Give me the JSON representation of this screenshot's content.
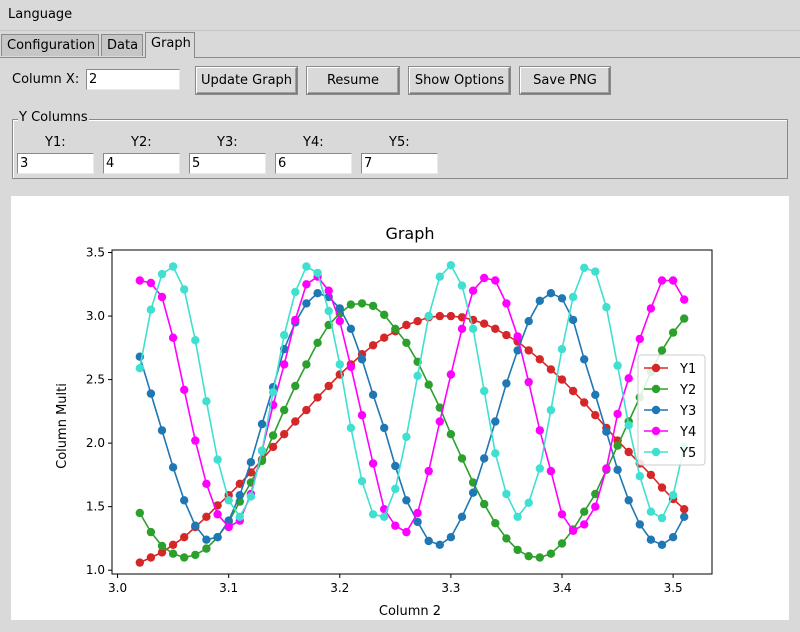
{
  "menu": {
    "language_label": "Language"
  },
  "tabs": [
    {
      "label": "Configuration",
      "active": false
    },
    {
      "label": "Data",
      "active": false
    },
    {
      "label": "Graph",
      "active": true
    }
  ],
  "controls": {
    "column_x_label": "Column X:",
    "column_x_value": "2",
    "update_graph_label": "Update Graph",
    "resume_label": "Resume",
    "show_options_label": "Show Options",
    "save_png_label": "Save PNG"
  },
  "y_columns": {
    "title": "Y Columns",
    "fields": [
      {
        "label": "Y1:",
        "value": "3"
      },
      {
        "label": "Y2:",
        "value": "4"
      },
      {
        "label": "Y3:",
        "value": "5"
      },
      {
        "label": "Y4:",
        "value": "6"
      },
      {
        "label": "Y5:",
        "value": "7"
      }
    ]
  },
  "chart_data": {
    "type": "line",
    "title": "Graph",
    "xlabel": "Column 2",
    "ylabel": "Column Multi",
    "xlim": [
      2.995,
      3.535
    ],
    "ylim": [
      0.97,
      3.52
    ],
    "xticks": [
      "3.0",
      "3.1",
      "3.2",
      "3.3",
      "3.4",
      "3.5"
    ],
    "yticks": [
      "1.0",
      "1.5",
      "2.0",
      "2.5",
      "3.0",
      "3.5"
    ],
    "grid": false,
    "legend_position": "center-right",
    "marker": "circle",
    "x": [
      3.02,
      3.03,
      3.04,
      3.05,
      3.06,
      3.07,
      3.08,
      3.09,
      3.1,
      3.11,
      3.12,
      3.13,
      3.14,
      3.15,
      3.16,
      3.17,
      3.18,
      3.19,
      3.2,
      3.21,
      3.22,
      3.23,
      3.24,
      3.25,
      3.26,
      3.27,
      3.28,
      3.29,
      3.3,
      3.31,
      3.32,
      3.33,
      3.34,
      3.35,
      3.36,
      3.37,
      3.38,
      3.39,
      3.4,
      3.41,
      3.42,
      3.43,
      3.44,
      3.45,
      3.46,
      3.47,
      3.48,
      3.49,
      3.5,
      3.51
    ],
    "series": [
      {
        "name": "Y1",
        "color": "#d62728",
        "values": [
          1.06,
          1.1,
          1.14,
          1.2,
          1.26,
          1.34,
          1.42,
          1.51,
          1.59,
          1.68,
          1.77,
          1.87,
          1.97,
          2.07,
          2.17,
          2.26,
          2.36,
          2.45,
          2.54,
          2.62,
          2.7,
          2.77,
          2.83,
          2.88,
          2.93,
          2.96,
          2.99,
          3.0,
          3.0,
          2.99,
          2.97,
          2.94,
          2.9,
          2.85,
          2.8,
          2.73,
          2.66,
          2.58,
          2.5,
          2.41,
          2.32,
          2.22,
          2.12,
          2.02,
          1.93,
          1.84,
          1.75,
          1.65,
          1.56,
          1.48
        ]
      },
      {
        "name": "Y2",
        "color": "#2ca02c",
        "values": [
          1.45,
          1.3,
          1.19,
          1.13,
          1.1,
          1.12,
          1.17,
          1.26,
          1.38,
          1.54,
          1.69,
          1.86,
          2.06,
          2.26,
          2.45,
          2.62,
          2.79,
          2.93,
          3.02,
          3.09,
          3.1,
          3.08,
          3.01,
          2.9,
          2.79,
          2.64,
          2.46,
          2.28,
          2.07,
          1.88,
          1.69,
          1.52,
          1.37,
          1.25,
          1.16,
          1.11,
          1.1,
          1.13,
          1.21,
          1.32,
          1.46,
          1.6,
          1.79,
          1.98,
          2.17,
          2.36,
          2.56,
          2.73,
          2.87,
          2.98
        ]
      },
      {
        "name": "Y3",
        "color": "#1f77b4",
        "values": [
          2.68,
          2.39,
          2.1,
          1.81,
          1.55,
          1.35,
          1.24,
          1.26,
          1.39,
          1.59,
          1.85,
          2.15,
          2.44,
          2.74,
          2.95,
          3.1,
          3.18,
          3.15,
          3.06,
          2.9,
          2.66,
          2.38,
          2.12,
          1.82,
          1.55,
          1.38,
          1.23,
          1.2,
          1.26,
          1.42,
          1.61,
          1.88,
          2.17,
          2.47,
          2.73,
          2.96,
          3.12,
          3.18,
          3.14,
          2.97,
          2.66,
          2.38,
          2.09,
          1.79,
          1.55,
          1.36,
          1.24,
          1.2,
          1.26,
          1.42
        ]
      },
      {
        "name": "Y4",
        "color": "#ff00ff",
        "values": [
          3.28,
          3.26,
          3.15,
          2.83,
          2.42,
          2.02,
          1.68,
          1.44,
          1.34,
          1.39,
          1.6,
          1.94,
          2.3,
          2.62,
          2.97,
          3.25,
          3.31,
          3.2,
          2.96,
          2.6,
          2.22,
          1.84,
          1.48,
          1.35,
          1.3,
          1.45,
          1.78,
          2.17,
          2.54,
          2.9,
          3.2,
          3.3,
          3.28,
          3.1,
          2.84,
          2.48,
          2.1,
          1.78,
          1.44,
          1.31,
          1.36,
          1.5,
          1.8,
          2.23,
          2.51,
          2.82,
          3.06,
          3.28,
          3.28,
          3.13
        ]
      },
      {
        "name": "Y5",
        "color": "#40e0d0",
        "values": [
          2.59,
          3.05,
          3.33,
          3.39,
          3.21,
          2.81,
          2.33,
          1.87,
          1.55,
          1.42,
          1.58,
          1.94,
          2.4,
          2.85,
          3.19,
          3.39,
          3.34,
          3.04,
          2.62,
          2.12,
          1.7,
          1.44,
          1.42,
          1.64,
          2.05,
          2.53,
          3.0,
          3.31,
          3.4,
          3.24,
          2.9,
          2.41,
          1.92,
          1.6,
          1.42,
          1.53,
          1.8,
          2.26,
          2.74,
          3.15,
          3.38,
          3.35,
          3.07,
          2.61,
          2.14,
          1.74,
          1.46,
          1.41,
          1.59,
          1.97
        ]
      }
    ]
  }
}
